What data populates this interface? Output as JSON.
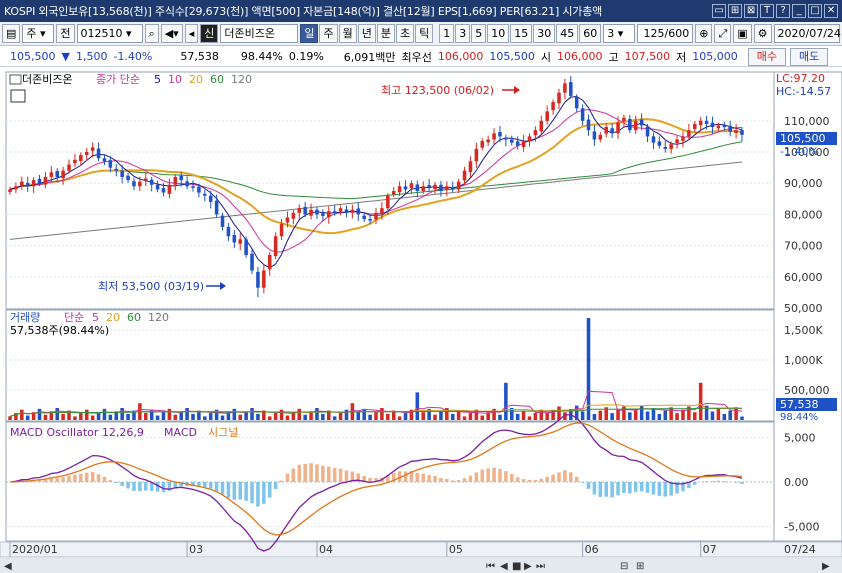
{
  "titlebar": {
    "text": "KOSPI 외국인보유[13,568(천)] 주식수[29,673(천)] 액면[500] 자본금[148(억)] 결산[12월] EPS[1,669] PER[63.21] 시가총액"
  },
  "toolbar": {
    "market": "주",
    "market_kind": "전",
    "code": "012510",
    "badge": "신",
    "name": "더존비즈온",
    "periods": [
      "일",
      "주",
      "월",
      "년",
      "분",
      "초",
      "틱"
    ],
    "active_period": "일",
    "minutes": [
      "1",
      "3",
      "5",
      "10",
      "15",
      "30",
      "45",
      "60"
    ],
    "minute_value": "3",
    "count": "125",
    "count_total": "/600",
    "date": "2020/07/24"
  },
  "quote": {
    "price": "105,500",
    "change_arrow": "▼",
    "change": "1,500",
    "change_pct": "-1.40%",
    "volume": "57,538",
    "vol_pct": "98.44%",
    "turnover": "0.19%",
    "amount": "6,091백만",
    "bid_label": "최우선",
    "bid": "106,000",
    "ask": "105,500",
    "open_label": "시",
    "open": "106,000",
    "high_label": "고",
    "high": "107,500",
    "low_label": "저",
    "low": "105,000",
    "buy_label": "매수",
    "sell_label": "매도"
  },
  "price_panel": {
    "stock_tag": "더존비즈온",
    "ma_label": "종가 단순",
    "ma_periods": [
      "5",
      "10",
      "20",
      "60",
      "120"
    ],
    "lc": "LC:97.20",
    "hc": "HC:-14.57",
    "high_note": "최고 123,500 (06/02)",
    "low_note": "최저 53,500 (03/19)",
    "last_price_tag": "105,500",
    "last_pct_tag": "-1.40%"
  },
  "volume_panel": {
    "label": "거래량",
    "ma_label": "단순",
    "ma_periods": [
      "5",
      "20",
      "60",
      "120"
    ],
    "current": "57,538주(98.44%)",
    "last_tag": "57,538",
    "pct_tag": "98.44%"
  },
  "macd_panel": {
    "label": "MACD Oscillator 12,26,9",
    "macd_label": "MACD",
    "signal_label": "시그널"
  },
  "x_axis": {
    "labels": [
      "2020/01",
      "03",
      "04",
      "05",
      "06",
      "07"
    ],
    "right_label": "07/24"
  },
  "colors": {
    "up": "#d42a21",
    "down": "#1f52c7",
    "ma5": "#1a1a8c",
    "ma10": "#cc3399",
    "ma20": "#e3a21f",
    "ma60": "#2e8b3a",
    "ma120": "#7a7a7a",
    "macd": "#7a1fa0",
    "signal": "#e0781a",
    "osc_pos": "#f0b28a",
    "osc_neg": "#7fc4ea"
  },
  "chart_data": [
    {
      "type": "candlestick",
      "title": "더존비즈온 (012510) 일봉",
      "x_range": [
        "2020/01",
        "2020/07/24"
      ],
      "ylim": [
        50000,
        125000
      ],
      "y_ticks": [
        "50,000",
        "60,000",
        "70,000",
        "80,000",
        "90,000",
        "100,000",
        "110,000"
      ],
      "close_series": [
        88000,
        89000,
        90500,
        89000,
        91000,
        90000,
        92000,
        93500,
        92000,
        94000,
        96000,
        97500,
        99000,
        100000,
        101500,
        98000,
        97000,
        95000,
        94000,
        92000,
        91000,
        89000,
        90500,
        91500,
        89500,
        88000,
        87000,
        89500,
        92000,
        91000,
        89000,
        88500,
        87000,
        86000,
        84000,
        80000,
        76000,
        73000,
        71000,
        72000,
        67000,
        62000,
        56500,
        62000,
        67000,
        73000,
        77000,
        79000,
        80500,
        82000,
        80000,
        81500,
        80000,
        79500,
        81000,
        80500,
        82000,
        80500,
        81500,
        80000,
        78500,
        78000,
        80500,
        82000,
        86000,
        87500,
        89000,
        88000,
        90000,
        87500,
        89000,
        88500,
        89500,
        87500,
        89000,
        88000,
        90500,
        94000,
        97000,
        101000,
        103500,
        104000,
        106000,
        105000,
        104000,
        103000,
        102000,
        103500,
        105000,
        107000,
        110000,
        113000,
        116000,
        119000,
        122000,
        118000,
        114000,
        110000,
        107000,
        104000,
        105500,
        108000,
        106000,
        109500,
        111000,
        107000,
        110000,
        108500,
        105000,
        103000,
        102000,
        101000,
        102500,
        104000,
        105000,
        107000,
        109000,
        110000,
        109000,
        108000,
        108500,
        108000,
        106500,
        107000,
        105500
      ],
      "ma_periods": [
        5,
        10,
        20,
        60,
        120
      ],
      "annotations": {
        "high": 123500,
        "high_date": "06/02",
        "low": 53500,
        "low_date": "03/19"
      }
    },
    {
      "type": "bar",
      "title": "거래량",
      "ylim": [
        0,
        1800000
      ],
      "y_ticks": [
        "500,000",
        "1,000K",
        "1,500K"
      ],
      "spikes": [
        {
          "index": 22,
          "value": 280000
        },
        {
          "index": 58,
          "value": 280000
        },
        {
          "index": 69,
          "value": 460000
        },
        {
          "index": 84,
          "value": 620000
        },
        {
          "index": 98,
          "value": 1700000
        },
        {
          "index": 117,
          "value": 620000
        }
      ],
      "last": 57538
    },
    {
      "type": "line",
      "title": "MACD Oscillator 12,26,9",
      "ylim": [
        -6500,
        6500
      ],
      "y_ticks": [
        "5,000",
        "0.00",
        "-5,000"
      ],
      "series": [
        {
          "name": "MACD"
        },
        {
          "name": "시그널"
        },
        {
          "name": "Oscillator"
        }
      ]
    }
  ]
}
